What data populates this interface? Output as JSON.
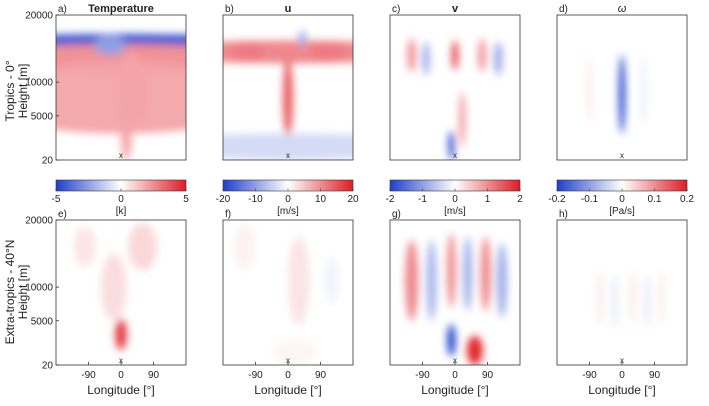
{
  "figure": {
    "row_labels": [
      "Tropics - 0°",
      "Extra-tropics - 40°N"
    ],
    "y_axis_label": "Height [m]",
    "x_axis_label": "Longitude [°]",
    "y_ticks": [
      "20000",
      "10000",
      "5000",
      "20"
    ],
    "x_ticks": [
      "-90",
      "0",
      "90"
    ],
    "marker": "x"
  },
  "chart_data": [
    {
      "type": "heatmap",
      "panel": "a)",
      "title": "Temperature",
      "row": "Tropics - 0°",
      "xlabel": "",
      "ylabel": "Height [m]",
      "colorbar": {
        "ticks": [
          "-5",
          "0",
          "5"
        ],
        "label": "[k]",
        "range": [
          -5,
          5
        ]
      },
      "colors": {
        "neg": "#1f3fcc",
        "pos": "#e01b24"
      },
      "features": [
        {
          "lon": 0,
          "height": 16000,
          "lon_width": 400,
          "height_width": 1200,
          "value": -4.5
        },
        {
          "lon": 0,
          "height": 13500,
          "lon_width": 400,
          "height_width": 2200,
          "value": 2.5
        },
        {
          "lon": 0,
          "height": 8000,
          "lon_width": 400,
          "height_width": 5000,
          "value": 2.0
        },
        {
          "lon": 30,
          "height": 9000,
          "lon_width": 40,
          "height_width": 5500,
          "value": 2.0
        },
        {
          "lon": 15,
          "height": 2500,
          "lon_width": 15,
          "height_width": 2500,
          "value": 2.0
        },
        {
          "lon": -30,
          "height": 15500,
          "lon_width": 45,
          "height_width": 1500,
          "value": -2.5
        }
      ]
    },
    {
      "type": "heatmap",
      "panel": "b)",
      "title": "u",
      "row": "Tropics - 0°",
      "xlabel": "",
      "ylabel": "",
      "colorbar": {
        "ticks": [
          "-20",
          "-10",
          "0",
          "10",
          "20"
        ],
        "label": "[m/s]",
        "range": [
          -20,
          20
        ]
      },
      "colors": {
        "neg": "#1f3fcc",
        "pos": "#e01b24"
      },
      "features": [
        {
          "lon": -110,
          "height": 14500,
          "lon_width": 45,
          "height_width": 1600,
          "value": 19
        },
        {
          "lon": 110,
          "height": 14500,
          "lon_width": 50,
          "height_width": 1600,
          "value": 19
        },
        {
          "lon": 0,
          "height": 14500,
          "lon_width": 400,
          "height_width": 1700,
          "value": 11
        },
        {
          "lon": 0,
          "height": 8000,
          "lon_width": 14,
          "height_width": 5500,
          "value": 15
        },
        {
          "lon": 0,
          "height": 1500,
          "lon_width": 400,
          "height_width": 1500,
          "value": -4
        },
        {
          "lon": 40,
          "height": 16500,
          "lon_width": 12,
          "height_width": 1200,
          "value": -8
        }
      ]
    },
    {
      "type": "heatmap",
      "panel": "c)",
      "title": "v",
      "row": "Tropics - 0°",
      "xlabel": "",
      "ylabel": "",
      "colorbar": {
        "ticks": [
          "-2",
          "-1",
          "0",
          "1",
          "2"
        ],
        "label": "[m/s]",
        "range": [
          -2,
          2
        ]
      },
      "colors": {
        "neg": "#1f3fcc",
        "pos": "#e01b24"
      },
      "features": [
        {
          "lon": 0,
          "height": 14000,
          "lon_width": 10,
          "height_width": 2200,
          "value": 1.6
        },
        {
          "lon": -10,
          "height": 1500,
          "lon_width": 8,
          "height_width": 1800,
          "value": -2.0
        },
        {
          "lon": 20,
          "height": 5000,
          "lon_width": 8,
          "height_width": 3500,
          "value": 1.0
        },
        {
          "lon": -120,
          "height": 14000,
          "lon_width": 12,
          "height_width": 2500,
          "value": 1.0
        },
        {
          "lon": -80,
          "height": 13500,
          "lon_width": 10,
          "height_width": 2500,
          "value": -0.9
        },
        {
          "lon": 75,
          "height": 14000,
          "lon_width": 12,
          "height_width": 2500,
          "value": 0.9
        },
        {
          "lon": 120,
          "height": 13500,
          "lon_width": 12,
          "height_width": 2500,
          "value": -0.9
        }
      ]
    },
    {
      "type": "heatmap",
      "panel": "d)",
      "title": "ω",
      "row": "Tropics - 0°",
      "xlabel": "",
      "ylabel": "",
      "colorbar": {
        "ticks": [
          "-0.2",
          "-0.1",
          "0",
          "0.1",
          "0.2"
        ],
        "label": "[Pa/s]",
        "range": [
          -0.2,
          0.2
        ]
      },
      "colors": {
        "neg": "#1f3fcc",
        "pos": "#e01b24"
      },
      "features": [
        {
          "lon": 0,
          "height": 8500,
          "lon_width": 9,
          "height_width": 5500,
          "value": -0.2
        },
        {
          "lon": -90,
          "height": 9000,
          "lon_width": 4,
          "height_width": 5000,
          "value": 0.02
        },
        {
          "lon": 60,
          "height": 9000,
          "lon_width": 4,
          "height_width": 5000,
          "value": -0.02
        }
      ]
    },
    {
      "type": "heatmap",
      "panel": "e)",
      "title": "",
      "row": "Extra-tropics - 40°N",
      "xlabel": "Longitude [°]",
      "ylabel": "Height [m]",
      "colors": {
        "neg": "#1f3fcc",
        "pos": "#e01b24"
      },
      "features": [
        {
          "lon": 0,
          "height": 3500,
          "lon_width": 16,
          "height_width": 1800,
          "value": 4.5
        },
        {
          "lon": -20,
          "height": 10000,
          "lon_width": 35,
          "height_width": 5000,
          "value": 0.8
        },
        {
          "lon": 60,
          "height": 16000,
          "lon_width": 40,
          "height_width": 3500,
          "value": 0.9
        },
        {
          "lon": -100,
          "height": 16000,
          "lon_width": 30,
          "height_width": 3000,
          "value": 0.6
        }
      ]
    },
    {
      "type": "heatmap",
      "panel": "f)",
      "title": "",
      "row": "Extra-tropics - 40°N",
      "xlabel": "Longitude [°]",
      "ylabel": "",
      "colors": {
        "neg": "#1f3fcc",
        "pos": "#e01b24"
      },
      "features": [
        {
          "lon": 30,
          "height": 11000,
          "lon_width": 30,
          "height_width": 6500,
          "value": 2.5
        },
        {
          "lon": -120,
          "height": 16000,
          "lon_width": 30,
          "height_width": 3500,
          "value": 1.2
        },
        {
          "lon": 120,
          "height": 11000,
          "lon_width": 20,
          "height_width": 3500,
          "value": -1.2
        },
        {
          "lon": 20,
          "height": 1500,
          "lon_width": 60,
          "height_width": 1500,
          "value": 0.8
        }
      ]
    },
    {
      "type": "heatmap",
      "panel": "g)",
      "title": "",
      "row": "Extra-tropics - 40°N",
      "xlabel": "Longitude [°]",
      "ylabel": "",
      "colors": {
        "neg": "#1f3fcc",
        "pos": "#e01b24"
      },
      "features": [
        {
          "lon": -10,
          "height": 2800,
          "lon_width": 12,
          "height_width": 1800,
          "value": -2.0
        },
        {
          "lon": 55,
          "height": 1500,
          "lon_width": 22,
          "height_width": 1800,
          "value": 2.0
        },
        {
          "lon": -120,
          "height": 11000,
          "lon_width": 18,
          "height_width": 6000,
          "value": 1.1
        },
        {
          "lon": -65,
          "height": 11000,
          "lon_width": 14,
          "height_width": 6000,
          "value": -0.8
        },
        {
          "lon": -10,
          "height": 12500,
          "lon_width": 12,
          "height_width": 5500,
          "value": 1.1
        },
        {
          "lon": 35,
          "height": 12000,
          "lon_width": 12,
          "height_width": 5500,
          "value": -0.9
        },
        {
          "lon": 85,
          "height": 12000,
          "lon_width": 14,
          "height_width": 5500,
          "value": 1.1
        },
        {
          "lon": 130,
          "height": 11000,
          "lon_width": 14,
          "height_width": 5500,
          "value": -0.9
        }
      ]
    },
    {
      "type": "heatmap",
      "panel": "h)",
      "title": "",
      "row": "Extra-tropics - 40°N",
      "xlabel": "Longitude [°]",
      "ylabel": "",
      "colors": {
        "neg": "#1f3fcc",
        "pos": "#e01b24"
      },
      "features": [
        {
          "lon": -60,
          "height": 8500,
          "lon_width": 3,
          "height_width": 4000,
          "value": 0.025
        },
        {
          "lon": -20,
          "height": 8000,
          "lon_width": 3,
          "height_width": 4000,
          "value": -0.025
        },
        {
          "lon": 30,
          "height": 8500,
          "lon_width": 3,
          "height_width": 4000,
          "value": 0.025
        },
        {
          "lon": 70,
          "height": 8000,
          "lon_width": 3,
          "height_width": 4000,
          "value": -0.025
        },
        {
          "lon": 110,
          "height": 8500,
          "lon_width": 3,
          "height_width": 4000,
          "value": 0.02
        }
      ]
    }
  ]
}
